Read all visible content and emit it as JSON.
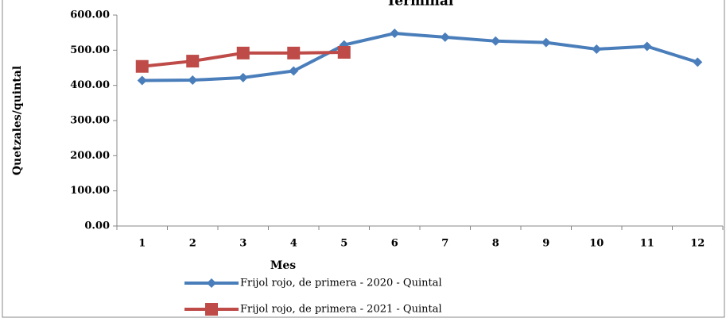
{
  "chart_data": {
    "type": "line",
    "title": "Terminal",
    "xlabel": "Mes",
    "ylabel": "Quetzales/quintal",
    "categories": [
      "1",
      "2",
      "3",
      "4",
      "5",
      "6",
      "7",
      "8",
      "9",
      "10",
      "11",
      "12"
    ],
    "series": [
      {
        "name": "Frijol rojo, de primera - 2020 - Quintal",
        "color": "#4a7ebb",
        "marker": "diamond",
        "values": [
          414,
          415,
          422,
          441,
          515,
          548,
          537,
          526,
          522,
          503,
          511,
          466
        ]
      },
      {
        "name": "Frijol rojo, de primera - 2021 - Quintal",
        "color": "#be4b48",
        "marker": "square",
        "values": [
          454,
          469,
          492,
          492,
          494,
          null,
          null,
          null,
          null,
          null,
          null,
          null
        ]
      }
    ],
    "ylim": [
      0,
      600
    ],
    "yticks": [
      {
        "value": 0,
        "label": "0.00"
      },
      {
        "value": 100,
        "label": "100.00"
      },
      {
        "value": 200,
        "label": "200.00"
      },
      {
        "value": 300,
        "label": "300.00"
      },
      {
        "value": 400,
        "label": "400.00"
      },
      {
        "value": 500,
        "label": "500.00"
      },
      {
        "value": 600,
        "label": "600.00"
      }
    ],
    "grid": false,
    "legend": "bottom"
  }
}
